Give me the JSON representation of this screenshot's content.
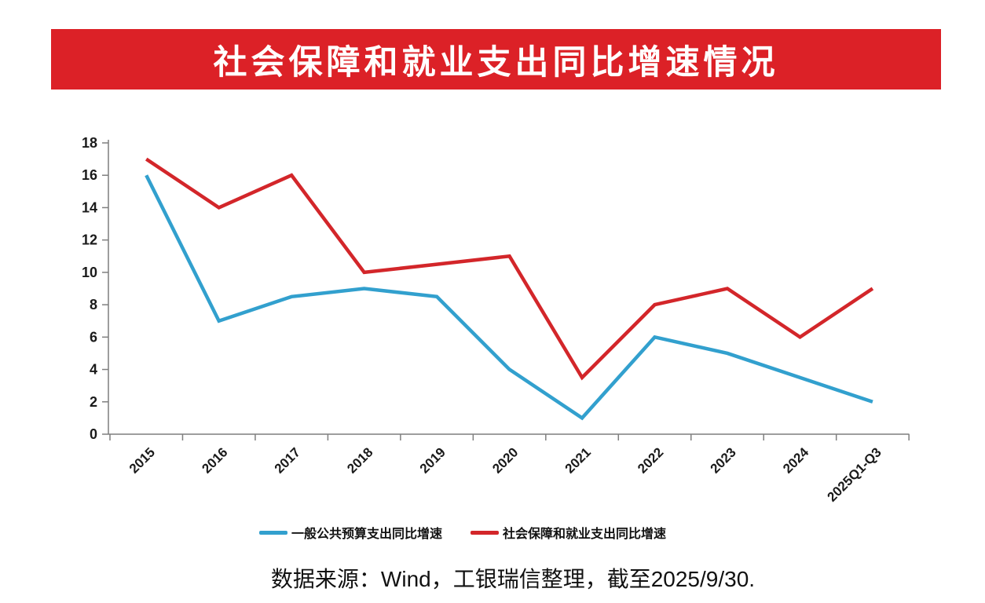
{
  "banner": {
    "title": "社会保障和就业支出同比增速情况",
    "bg_color": "#DC2127",
    "text_color": "#FFFFFF"
  },
  "chart_data": {
    "type": "line",
    "categories": [
      "2015",
      "2016",
      "2017",
      "2018",
      "2019",
      "2020",
      "2021",
      "2022",
      "2023",
      "2024",
      "2025Q1-Q3"
    ],
    "series": [
      {
        "name": "一般公共预算支出同比增速",
        "color": "#32A0CE",
        "values": [
          16,
          7,
          8.5,
          9,
          8.5,
          4,
          1,
          6,
          5,
          3.5,
          2
        ]
      },
      {
        "name": "社会保障和就业支出同比增速",
        "color": "#D3262A",
        "values": [
          17,
          14,
          16,
          10,
          10.5,
          11,
          3.5,
          8,
          9,
          6,
          9
        ]
      }
    ],
    "title": "社会保障和就业支出同比增速情况",
    "xlabel": "",
    "ylabel": "",
    "ylim": [
      0,
      18
    ],
    "ytick_step": 2,
    "grid": false,
    "legend_position": "bottom",
    "xlabel_rotation": 45,
    "axis_color": "#7F7F7F",
    "tick_label_color": "#1A1A1A"
  },
  "source_note": "数据来源：Wind，工银瑞信整理，截至2025/9/30."
}
